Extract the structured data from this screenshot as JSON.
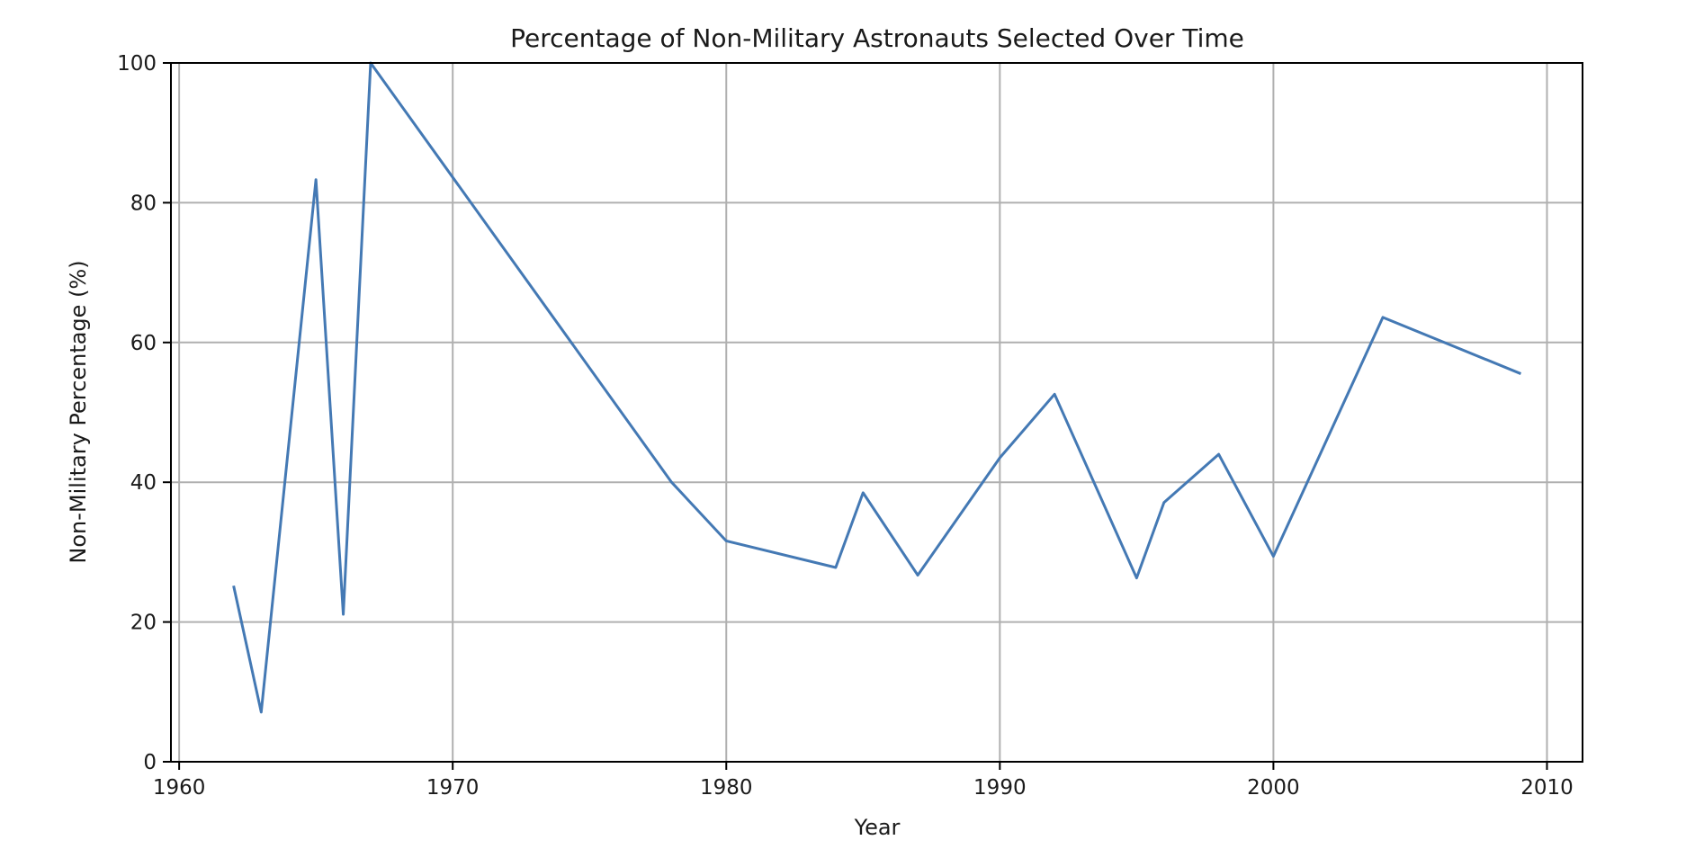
{
  "chart_data": {
    "type": "line",
    "title": "Percentage of Non-Military Astronauts Selected Over Time",
    "xlabel": "Year",
    "ylabel": "Non-Military Percentage (%)",
    "xlim": [
      1959.7,
      2011.3
    ],
    "ylim": [
      0,
      100
    ],
    "xticks": [
      1960,
      1970,
      1980,
      1990,
      2000,
      2010
    ],
    "yticks": [
      0,
      20,
      40,
      60,
      80,
      100
    ],
    "grid": true,
    "series": [
      {
        "color": "#4479b4",
        "x": [
          1962,
          1963,
          1965,
          1966,
          1967,
          1978,
          1980,
          1984,
          1985,
          1987,
          1990,
          1992,
          1995,
          1996,
          1998,
          2000,
          2004,
          2009
        ],
        "y": [
          25.0,
          7.1,
          83.3,
          21.1,
          100.0,
          40.0,
          31.6,
          27.8,
          38.5,
          26.7,
          43.5,
          52.6,
          26.3,
          37.1,
          44.0,
          29.4,
          63.6,
          55.6
        ]
      }
    ]
  }
}
